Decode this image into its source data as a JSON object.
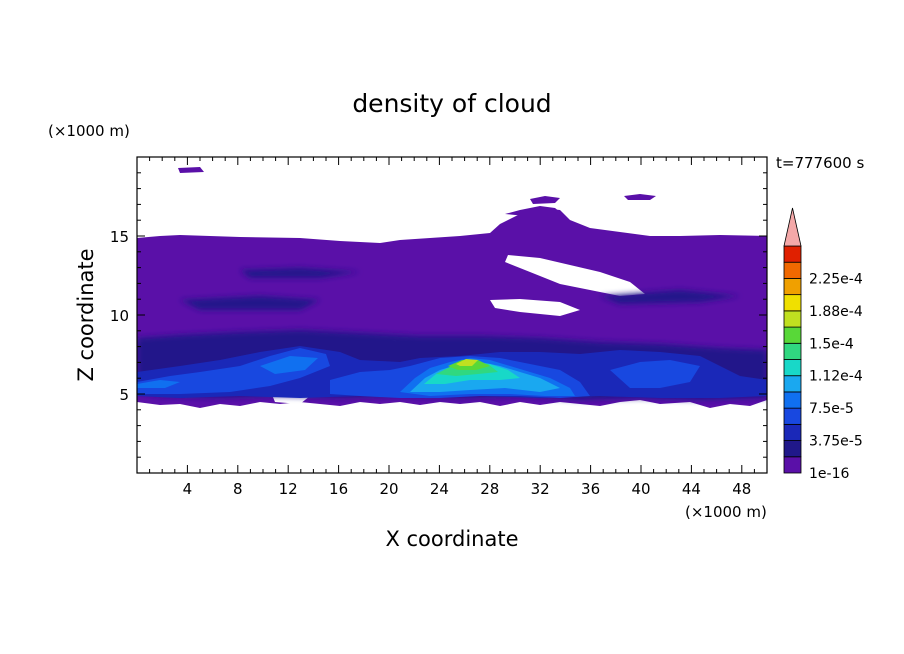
{
  "chart_data": {
    "type": "heatmap",
    "title": "density of cloud",
    "xlabel": "X coordinate",
    "ylabel": "Z coordinate",
    "x_unit": "(×1000 m)",
    "y_unit": "(×1000 m)",
    "time_label": "t=777600 s",
    "xlim": [
      0,
      50
    ],
    "ylim": [
      0,
      20
    ],
    "x_ticks": [
      4,
      8,
      12,
      16,
      20,
      24,
      28,
      32,
      36,
      40,
      44,
      48
    ],
    "y_ticks": [
      5,
      10,
      15
    ],
    "colorbar": {
      "labels": [
        "1e-16",
        "3.75e-5",
        "7.5e-5",
        "1.12e-4",
        "1.5e-4",
        "1.88e-4",
        "2.25e-4"
      ],
      "levels": [
        0,
        1.875e-05,
        3.75e-05,
        5.625e-05,
        7.5e-05,
        9.375e-05,
        0.0001125,
        0.00013125,
        0.00015,
        0.00016875,
        0.0001875,
        0.00020625,
        0.000225,
        0.00024375
      ],
      "colors": [
        "#5a10a8",
        "#20188a",
        "#1a28b8",
        "#1848e0",
        "#1070f0",
        "#1aa8f0",
        "#18d8c8",
        "#30d880",
        "#58d838",
        "#c0e020",
        "#f0e000",
        "#f0a000",
        "#f06800",
        "#e02000"
      ],
      "overflow_color": "#f4a8a8"
    },
    "regions": [
      {
        "level": "1e-16",
        "x": [
          0,
          50
        ],
        "z": [
          4.2,
          15
        ]
      },
      {
        "level": "3.75e-5",
        "x": [
          0,
          50
        ],
        "z": [
          4.6,
          9
        ]
      },
      {
        "level": "7.5e-5",
        "x": [
          1,
          48
        ],
        "z": [
          4.8,
          8
        ]
      },
      {
        "level": "1.5e-4",
        "x": [
          23,
          29
        ],
        "z": [
          5.8,
          7.3
        ]
      }
    ]
  }
}
